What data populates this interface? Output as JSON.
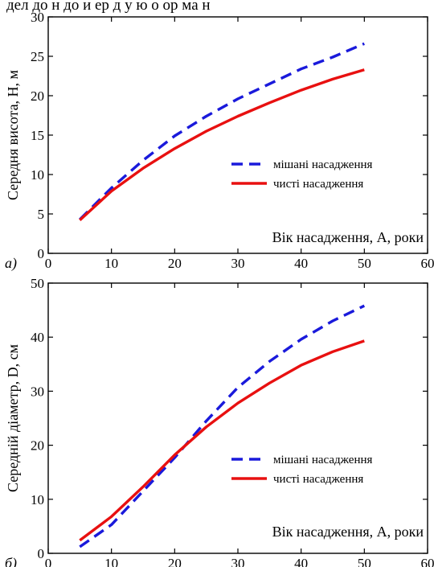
{
  "header_cut_text": "дел до н до и  ер д у ю о ор ма  н",
  "chart_data": [
    {
      "type": "line",
      "panel_label": "а)",
      "xlabel": "Вік насадження, A, роки",
      "ylabel": "Середня висота, H, м",
      "xlim": [
        0,
        60
      ],
      "ylim": [
        0,
        30
      ],
      "x_ticks": [
        "0",
        "10",
        "20",
        "30",
        "40",
        "50",
        "60"
      ],
      "y_ticks": [
        "0",
        "5",
        "10",
        "15",
        "20",
        "25",
        "30"
      ],
      "grid": false,
      "legend_position": "center-right",
      "series": [
        {
          "name": "мішані насадження",
          "color": "#1a1adb",
          "style": "dashed",
          "x": [
            5,
            10,
            15,
            20,
            25,
            30,
            35,
            40,
            45,
            50
          ],
          "y": [
            4.3,
            8.3,
            11.8,
            14.9,
            17.4,
            19.6,
            21.5,
            23.4,
            24.9,
            26.6
          ]
        },
        {
          "name": "чисті насадження",
          "color": "#e81010",
          "style": "solid",
          "x": [
            5,
            10,
            15,
            20,
            25,
            30,
            35,
            40,
            45,
            50
          ],
          "y": [
            4.2,
            7.9,
            10.8,
            13.3,
            15.5,
            17.4,
            19.1,
            20.7,
            22.1,
            23.3
          ]
        }
      ]
    },
    {
      "type": "line",
      "panel_label": "б)",
      "xlabel": "Вік насадження, A, роки",
      "ylabel": "Середній діаметр, D, см",
      "xlim": [
        0,
        60
      ],
      "ylim": [
        0,
        50
      ],
      "x_ticks": [
        "0",
        "10",
        "20",
        "30",
        "40",
        "50",
        "60"
      ],
      "y_ticks": [
        "0",
        "10",
        "20",
        "30",
        "40",
        "50"
      ],
      "grid": false,
      "legend_position": "center-right",
      "series": [
        {
          "name": "мішані насадження",
          "color": "#1a1adb",
          "style": "dashed",
          "x": [
            5,
            10,
            15,
            20,
            25,
            30,
            35,
            40,
            45,
            50
          ],
          "y": [
            1.2,
            5.3,
            11.5,
            17.7,
            24.5,
            30.7,
            35.5,
            39.6,
            43.0,
            45.8
          ]
        },
        {
          "name": "чисті насадження",
          "color": "#e81010",
          "style": "solid",
          "x": [
            5,
            10,
            15,
            20,
            25,
            30,
            35,
            40,
            45,
            50
          ],
          "y": [
            2.4,
            6.8,
            12.3,
            18.2,
            23.4,
            27.8,
            31.5,
            34.8,
            37.3,
            39.3
          ]
        }
      ]
    }
  ]
}
